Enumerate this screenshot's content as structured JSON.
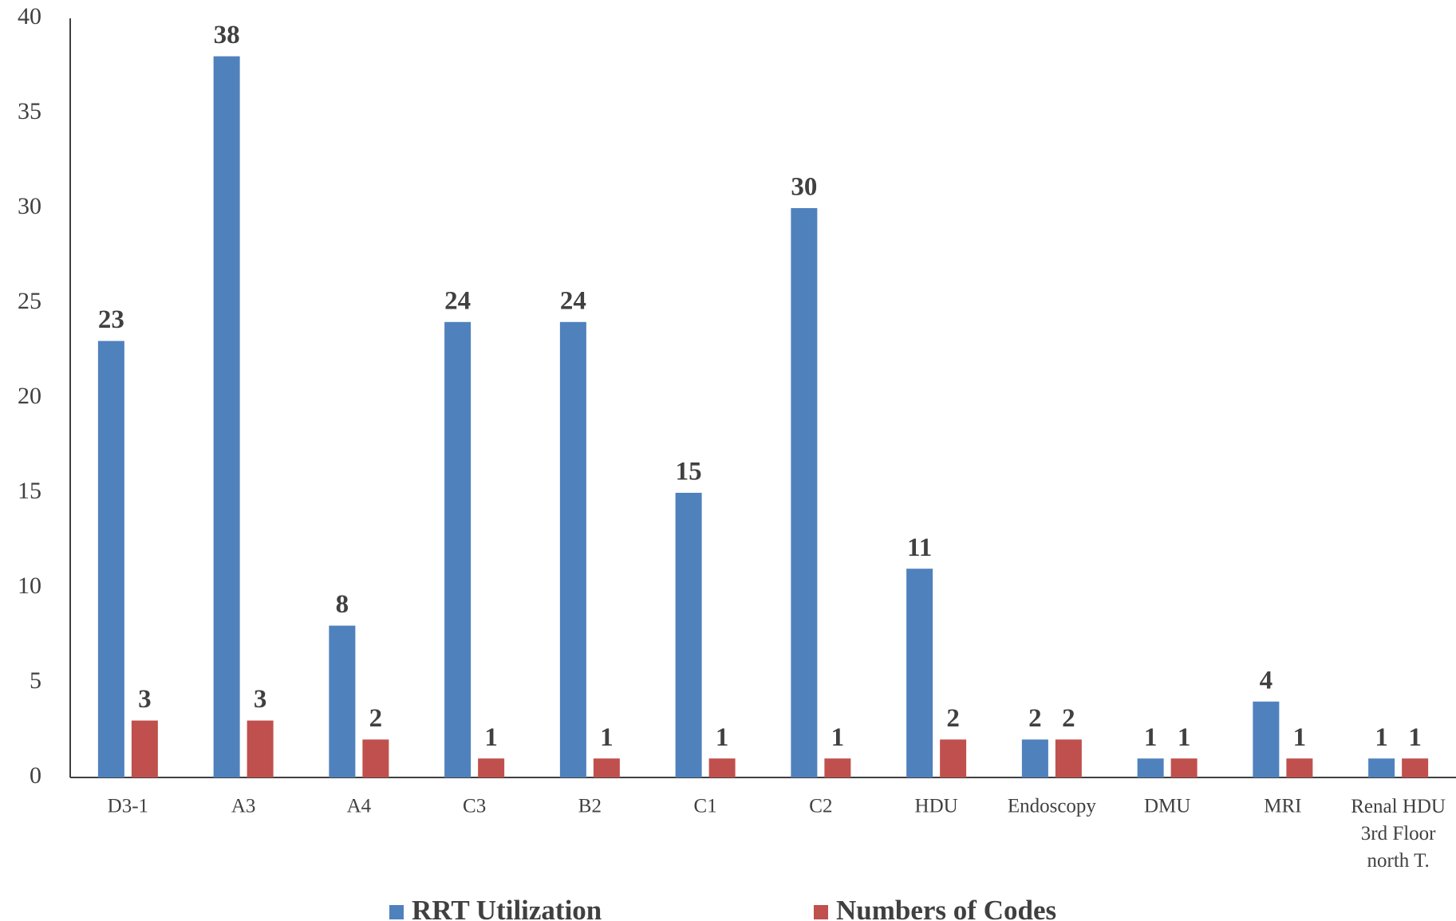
{
  "chart_data": {
    "type": "bar",
    "categories": [
      "D3-1",
      "A3",
      "A4",
      "C3",
      "B2",
      "C1",
      "C2",
      "HDU",
      "Endoscopy",
      "DMU",
      "MRI",
      "Renal HDU 3rd Floor north T."
    ],
    "series": [
      {
        "name": "RRT Utilization",
        "color": "#4f81bd",
        "values": [
          23,
          38,
          8,
          24,
          24,
          15,
          30,
          11,
          2,
          1,
          4,
          1
        ]
      },
      {
        "name": "Numbers of Codes",
        "color": "#c0504d",
        "values": [
          3,
          3,
          2,
          1,
          1,
          1,
          1,
          2,
          2,
          1,
          1,
          1
        ]
      }
    ],
    "ylim": [
      0,
      40
    ],
    "yticks": [
      0,
      5,
      10,
      15,
      20,
      25,
      30,
      35,
      40
    ],
    "grid": false,
    "legend": "bottom"
  }
}
